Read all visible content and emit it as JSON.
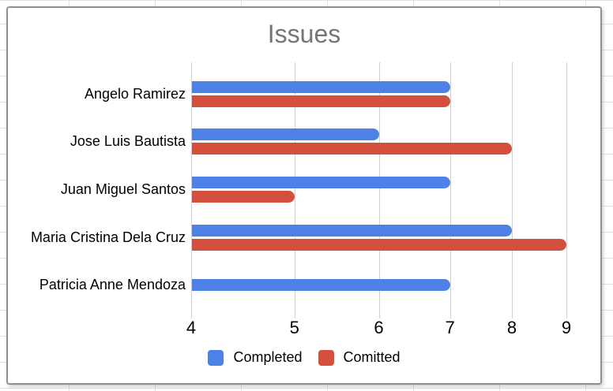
{
  "sheet": {
    "gridline_color": "#e2e2e2"
  },
  "chart": {
    "background": "#ffffff",
    "card_border_color": "#8f8f8f",
    "title_color": "#757575",
    "plot_gridline_color": "#d0d0d0",
    "axis_text_color": "#000000"
  },
  "chart_data": {
    "type": "bar",
    "orientation": "horizontal",
    "title": "Issues",
    "categories": [
      "Angelo Ramirez",
      "Jose Luis Bautista",
      "Juan Miguel Santos",
      "Maria Cristina Dela Cruz",
      "Patricia Anne Mendoza"
    ],
    "series": [
      {
        "name": "Completed",
        "color": "#4e81e8",
        "values": [
          7,
          6,
          7,
          8,
          7
        ]
      },
      {
        "name": "Comitted",
        "color": "#d54f3d",
        "values": [
          7,
          8,
          5,
          9,
          4
        ]
      }
    ],
    "x_ticks": [
      4,
      5,
      6,
      7,
      8,
      9
    ],
    "xlim": [
      4,
      9
    ],
    "x_scale": "log",
    "grid": "vertical-only",
    "legend_position": "bottom"
  }
}
